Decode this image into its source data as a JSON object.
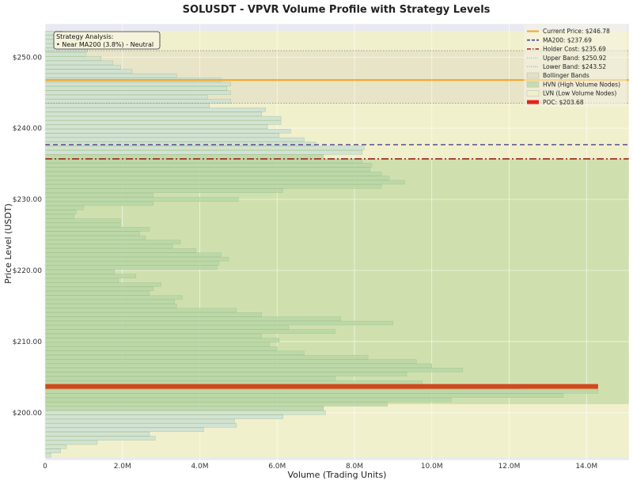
{
  "chart_data": {
    "type": "bar",
    "orientation": "horizontal",
    "title": "SOLUSDT - VPVR Volume Profile with Strategy Levels",
    "xlabel": "Volume (Trading Units)",
    "ylabel": "Price Level (USDT)",
    "xlim": [
      0,
      15100000
    ],
    "ylim": [
      193.3,
      254.7
    ],
    "x_ticks": [
      {
        "value": 0,
        "label": "0"
      },
      {
        "value": 2000000,
        "label": "2.0M"
      },
      {
        "value": 4000000,
        "label": "4.0M"
      },
      {
        "value": 6000000,
        "label": "6.0M"
      },
      {
        "value": 8000000,
        "label": "8.0M"
      },
      {
        "value": 10000000,
        "label": "10.0M"
      },
      {
        "value": 12000000,
        "label": "12.0M"
      },
      {
        "value": 14000000,
        "label": "14.0M"
      }
    ],
    "y_ticks": [
      {
        "value": 200,
        "label": "$200.00"
      },
      {
        "value": 210,
        "label": "$210.00"
      },
      {
        "value": 220,
        "label": "$220.00"
      },
      {
        "value": 230,
        "label": "$230.00"
      },
      {
        "value": 240,
        "label": "$240.00"
      },
      {
        "value": 250,
        "label": "$250.00"
      }
    ],
    "grid": true,
    "legend_position": "top-right",
    "bin_height": 0.6,
    "volume_profile": {
      "price_levels": [
        194.0,
        194.6,
        195.2,
        195.8,
        196.4,
        197.0,
        197.6,
        198.2,
        198.8,
        199.4,
        200.0,
        200.6,
        201.2,
        201.8,
        202.4,
        203.0,
        203.6,
        204.2,
        204.8,
        205.4,
        206.0,
        206.6,
        207.2,
        207.8,
        208.4,
        209.0,
        209.6,
        210.2,
        210.8,
        211.4,
        212.0,
        212.6,
        213.2,
        213.8,
        214.4,
        215.0,
        215.6,
        216.2,
        216.8,
        217.4,
        218.0,
        218.6,
        219.2,
        219.8,
        220.4,
        221.0,
        221.6,
        222.2,
        222.8,
        223.4,
        224.0,
        224.6,
        225.2,
        225.8,
        226.4,
        227.0,
        227.6,
        228.2,
        228.8,
        229.4,
        230.0,
        230.6,
        231.2,
        231.8,
        232.4,
        233.0,
        233.6,
        234.2,
        234.8,
        235.4,
        236.0,
        236.6,
        237.2,
        237.8,
        238.4,
        239.0,
        239.6,
        240.2,
        240.8,
        241.4,
        242.0,
        242.6,
        243.2,
        243.8,
        244.4,
        245.0,
        245.6,
        246.2,
        246.8,
        247.4,
        248.0,
        248.6,
        249.2,
        249.8,
        250.4,
        251.0,
        251.6,
        252.2,
        252.8,
        253.4
      ],
      "volumes": [
        150000,
        400000,
        550000,
        1350000,
        2850000,
        2700000,
        4100000,
        4950000,
        4900000,
        6150000,
        7250000,
        7200000,
        8850000,
        10500000,
        13400000,
        14300000,
        12300000,
        9750000,
        7500000,
        9350000,
        10800000,
        10000000,
        9600000,
        8350000,
        6700000,
        6000000,
        5800000,
        6050000,
        5600000,
        7500000,
        6300000,
        9000000,
        7650000,
        5600000,
        4950000,
        3400000,
        3350000,
        3550000,
        2700000,
        2800000,
        3000000,
        1900000,
        2350000,
        1800000,
        4450000,
        4500000,
        4750000,
        4550000,
        3900000,
        3300000,
        3500000,
        2600000,
        2450000,
        2700000,
        1950000,
        1950000,
        750000,
        800000,
        1000000,
        2800000,
        5000000,
        2800000,
        6150000,
        8700000,
        9300000,
        8900000,
        8700000,
        8400000,
        8450000,
        8200000,
        7200000,
        8200000,
        8250000,
        7000000,
        6700000,
        6050000,
        6350000,
        5750000,
        6100000,
        6100000,
        5600000,
        5700000,
        4250000,
        4800000,
        4200000,
        4800000,
        4700000,
        4800000,
        4550000,
        3400000,
        2250000,
        1950000,
        1750000,
        1450000,
        1050000,
        1100000,
        600000,
        650000,
        500000,
        450000
      ],
      "hvn_flags": [
        false,
        false,
        false,
        false,
        false,
        false,
        false,
        false,
        false,
        false,
        false,
        true,
        true,
        true,
        true,
        true,
        true,
        true,
        true,
        true,
        true,
        true,
        true,
        true,
        true,
        true,
        true,
        true,
        true,
        true,
        true,
        true,
        true,
        true,
        true,
        true,
        true,
        true,
        true,
        true,
        true,
        true,
        true,
        true,
        true,
        true,
        true,
        true,
        true,
        true,
        true,
        true,
        true,
        true,
        true,
        true,
        true,
        true,
        true,
        true,
        true,
        true,
        true,
        true,
        true,
        true,
        true,
        true,
        true,
        true,
        true,
        false,
        false,
        false,
        false,
        false,
        false,
        false,
        false,
        false,
        false,
        false,
        false,
        false,
        false,
        false,
        false,
        false,
        false,
        false,
        false,
        false,
        false,
        false,
        false,
        false,
        false,
        false,
        false,
        false
      ]
    },
    "levels": {
      "current_price": {
        "label": "Current Price: $246.78",
        "value": 246.78,
        "color": "#f5a623"
      },
      "ma200": {
        "label": "MA200: $237.69",
        "value": 237.69,
        "color": "#4a3f8a"
      },
      "holder_cost": {
        "label": "Holder Cost: $235.69",
        "value": 235.69,
        "color": "#a33025"
      },
      "upper_band": {
        "label": "Upper Band: $250.92",
        "value": 250.92,
        "color": "#9a9a9a"
      },
      "lower_band": {
        "label": "Lower Band: $243.52",
        "value": 243.52,
        "color": "#9a9a9a"
      },
      "poc": {
        "label": "POC: $203.68",
        "value": 203.68,
        "volume": 14300000,
        "color": "#d2471d"
      }
    },
    "hvn_zone": [
      201.2,
      235.7
    ],
    "legend": [
      {
        "key": "current_price",
        "label": "Current Price: $246.78",
        "kind": "solid-line",
        "color": "#f5a623"
      },
      {
        "key": "ma200",
        "label": "MA200: $237.69",
        "kind": "dashed-line",
        "color": "#4a3f8a"
      },
      {
        "key": "holder_cost",
        "label": "Holder Cost: $235.69",
        "kind": "dashdot-line",
        "color": "#a33025"
      },
      {
        "key": "upper_band",
        "label": "Upper Band: $250.92",
        "kind": "dotted-line",
        "color": "#9a9a9a"
      },
      {
        "key": "lower_band",
        "label": "Lower Band: $243.52",
        "kind": "dotted-line",
        "color": "#9a9a9a"
      },
      {
        "key": "bollinger",
        "label": "Bollinger Bands",
        "kind": "patch",
        "color": "#e3e0c4"
      },
      {
        "key": "hvn",
        "label": "HVN (High Volume Nodes)",
        "kind": "patch",
        "color": "#c6dcae"
      },
      {
        "key": "lvn",
        "label": "LVN (Low Volume Nodes)",
        "kind": "patch",
        "color": "#f1f0cd"
      },
      {
        "key": "poc",
        "label": "POC: $203.68",
        "kind": "thick-line",
        "color": "#e8211c"
      }
    ],
    "analysis": {
      "title": "Strategy Analysis:",
      "lines": [
        "• Near MA200 (3.8%) - Neutral"
      ]
    },
    "colors": {
      "axes_background": "#e9e9f3",
      "lvn_fill": "#f1f0cd",
      "hvn_fill": "#cfe0ae",
      "bollinger_fill": "#e3e0c4",
      "bar_fill_hvn": "#b9d6a6",
      "bar_fill_lvn": "#cde1d4",
      "bar_edge": "#9fbf8f",
      "grid": "#ffffff"
    }
  }
}
